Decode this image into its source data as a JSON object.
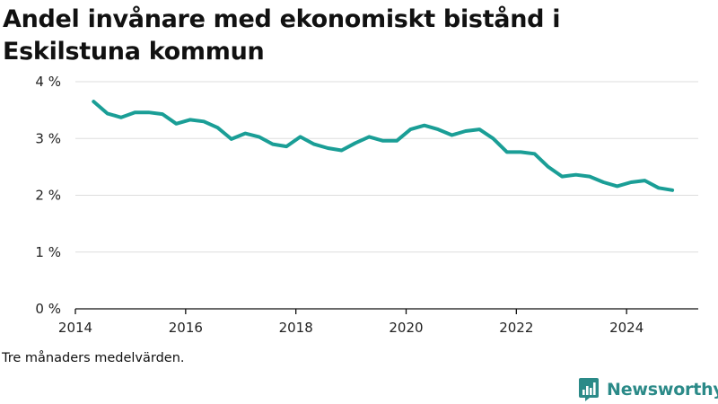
{
  "title": "Andel invånare med ekonomiskt bistånd i Eskilstuna kommun",
  "footnote": "Tre månaders medelvärden.",
  "brand": {
    "name": "Newsworthy",
    "icon": "newsworthy-logo-icon",
    "color": "#2b8a88"
  },
  "chart_data": {
    "type": "line",
    "title": "Andel invånare med ekonomiskt bistånd i Eskilstuna kommun",
    "xlabel": "",
    "ylabel": "",
    "x_ticks": [
      {
        "value": 2014,
        "label": "2014"
      },
      {
        "value": 2016,
        "label": "2016"
      },
      {
        "value": 2018,
        "label": "2018"
      },
      {
        "value": 2020,
        "label": "2020"
      },
      {
        "value": 2022,
        "label": "2022"
      },
      {
        "value": 2024,
        "label": "2024"
      }
    ],
    "y_ticks": [
      {
        "value": 0,
        "label": "0 %"
      },
      {
        "value": 1,
        "label": "1 %"
      },
      {
        "value": 2,
        "label": "2 %"
      },
      {
        "value": 3,
        "label": "3 %"
      },
      {
        "value": 4,
        "label": "4 %"
      }
    ],
    "xlim": [
      2014,
      2025.3
    ],
    "ylim": [
      0,
      4
    ],
    "grid": "horizontal",
    "line_color": "#1a9e96",
    "series": [
      {
        "points": [
          [
            2014.33,
            3.65
          ],
          [
            2014.58,
            3.44
          ],
          [
            2014.83,
            3.37
          ],
          [
            2015.08,
            3.46
          ],
          [
            2015.33,
            3.46
          ],
          [
            2015.58,
            3.43
          ],
          [
            2015.83,
            3.26
          ],
          [
            2016.08,
            3.33
          ],
          [
            2016.33,
            3.3
          ],
          [
            2016.58,
            3.19
          ],
          [
            2016.83,
            2.99
          ],
          [
            2017.08,
            3.09
          ],
          [
            2017.33,
            3.03
          ],
          [
            2017.58,
            2.9
          ],
          [
            2017.83,
            2.86
          ],
          [
            2018.08,
            3.03
          ],
          [
            2018.33,
            2.9
          ],
          [
            2018.58,
            2.83
          ],
          [
            2018.83,
            2.79
          ],
          [
            2019.08,
            2.92
          ],
          [
            2019.33,
            3.03
          ],
          [
            2019.58,
            2.96
          ],
          [
            2019.83,
            2.96
          ],
          [
            2020.08,
            3.16
          ],
          [
            2020.33,
            3.23
          ],
          [
            2020.58,
            3.16
          ],
          [
            2020.83,
            3.06
          ],
          [
            2021.08,
            3.13
          ],
          [
            2021.33,
            3.16
          ],
          [
            2021.58,
            3.0
          ],
          [
            2021.83,
            2.76
          ],
          [
            2022.08,
            2.76
          ],
          [
            2022.33,
            2.73
          ],
          [
            2022.58,
            2.5
          ],
          [
            2022.83,
            2.33
          ],
          [
            2023.08,
            2.36
          ],
          [
            2023.33,
            2.33
          ],
          [
            2023.58,
            2.23
          ],
          [
            2023.83,
            2.16
          ],
          [
            2024.08,
            2.23
          ],
          [
            2024.33,
            2.26
          ],
          [
            2024.58,
            2.13
          ],
          [
            2024.83,
            2.09
          ]
        ]
      }
    ]
  }
}
